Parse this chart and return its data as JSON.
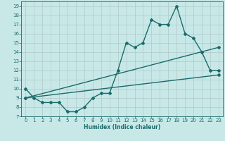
{
  "title": "",
  "xlabel": "Humidex (Indice chaleur)",
  "ylabel": "",
  "bg_color": "#c8e8e8",
  "line_color": "#1a6b6b",
  "xlim": [
    -0.5,
    23.5
  ],
  "ylim": [
    7,
    19.5
  ],
  "yticks": [
    7,
    8,
    9,
    10,
    11,
    12,
    13,
    14,
    15,
    16,
    17,
    18,
    19
  ],
  "xticks": [
    0,
    1,
    2,
    3,
    4,
    5,
    6,
    7,
    8,
    9,
    10,
    11,
    12,
    13,
    14,
    15,
    16,
    17,
    18,
    19,
    20,
    21,
    22,
    23
  ],
  "series1_x": [
    0,
    1,
    2,
    3,
    4,
    5,
    6,
    7,
    8,
    9,
    10,
    11,
    12,
    13,
    14,
    15,
    16,
    17,
    18,
    19,
    20,
    21,
    22,
    23
  ],
  "series1_y": [
    10,
    9,
    8.5,
    8.5,
    8.5,
    7.5,
    7.5,
    8,
    9,
    9.5,
    9.5,
    12,
    15,
    14.5,
    15,
    17.5,
    17,
    17,
    19,
    16,
    15.5,
    14,
    12,
    12
  ],
  "series2_x": [
    0,
    23
  ],
  "series2_y": [
    9.0,
    11.5
  ],
  "series3_x": [
    0,
    23
  ],
  "series3_y": [
    9.0,
    14.5
  ],
  "grid_color": "#b0c8c8",
  "marker": "D",
  "marker_size": 2.0,
  "line_width": 1.0,
  "tick_fontsize": 5.0,
  "xlabel_fontsize": 5.5
}
